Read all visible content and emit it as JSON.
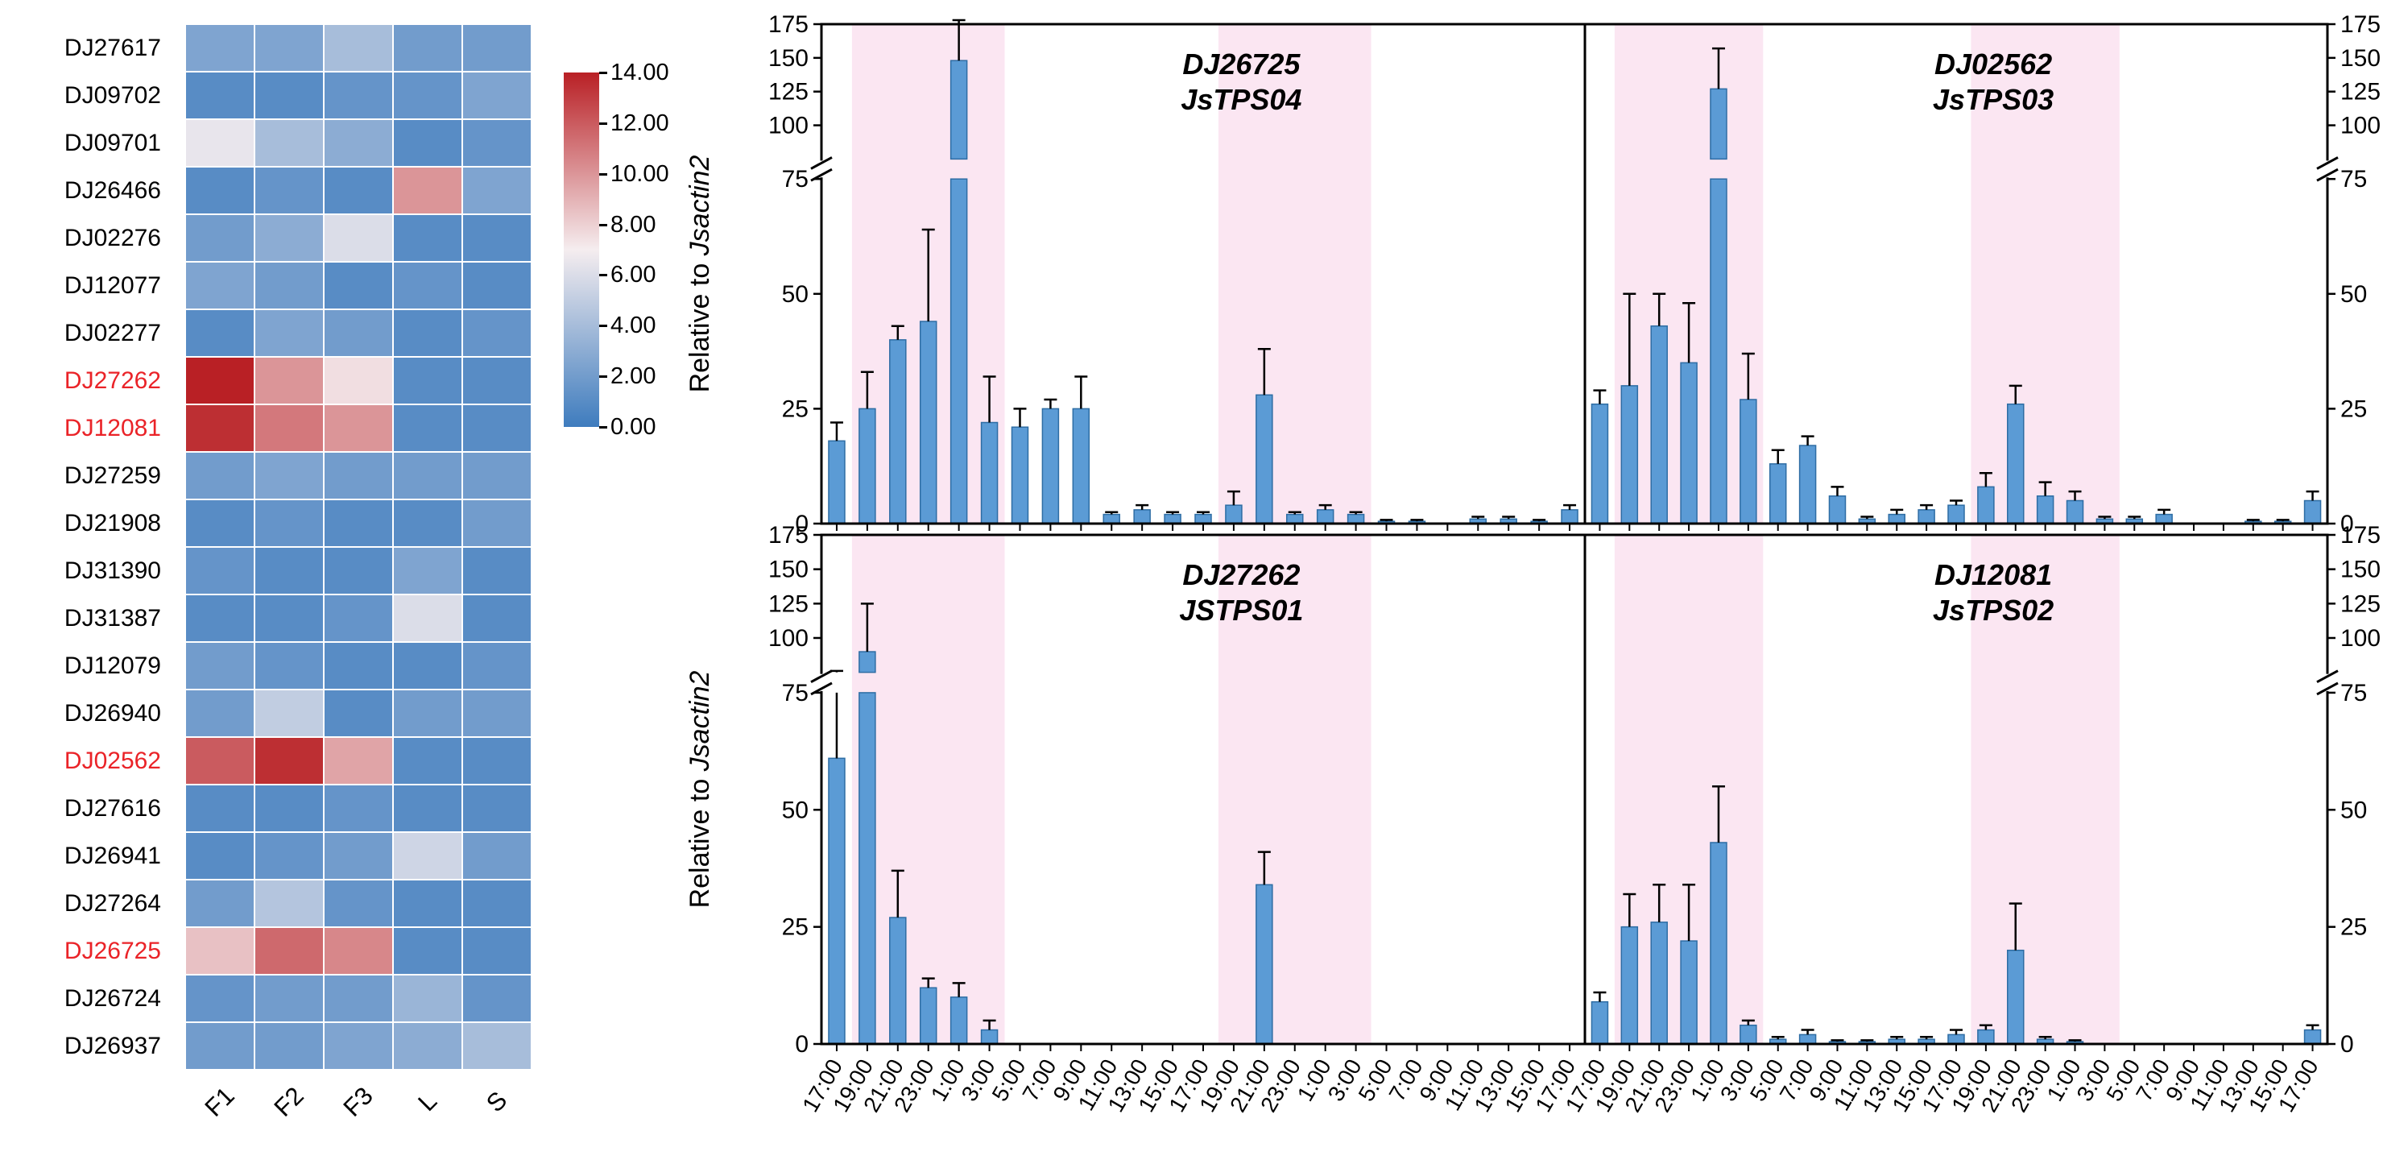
{
  "styles": {
    "bar_fill": "#5b9bd5",
    "bar_edge": "#2e6da4",
    "night_band": "#fbe6f2",
    "heatmap_low": "#3e7cbe",
    "heatmap_mid": "#f5edef",
    "heatmap_high": "#b92025",
    "highlight_label": "#ea2328",
    "axis_color": "#000000"
  },
  "axis_labels": {
    "y_regular": "Relative to ",
    "y_italic": "Jsactin2"
  },
  "chart_data": [
    {
      "type": "heatmap",
      "columns": [
        "F1",
        "F2",
        "F3",
        "L",
        "S"
      ],
      "row_ids": [
        "DJ27617",
        "DJ09702",
        "DJ09701",
        "DJ26466",
        "DJ02276",
        "DJ12077",
        "DJ02277",
        "DJ27262",
        "DJ12081",
        "DJ27259",
        "DJ21908",
        "DJ31390",
        "DJ31387",
        "DJ12079",
        "DJ26940",
        "DJ02562",
        "DJ27616",
        "DJ26941",
        "DJ27264",
        "DJ26725",
        "DJ26724",
        "DJ26937"
      ],
      "highlighted_rows": [
        "DJ27262",
        "DJ12081",
        "DJ02562",
        "DJ26725"
      ],
      "values": [
        [
          2.5,
          2.5,
          4.0,
          2.0,
          2.0
        ],
        [
          1.0,
          1.0,
          1.5,
          1.5,
          2.5
        ],
        [
          6.5,
          4.0,
          3.0,
          1.0,
          1.5
        ],
        [
          1.0,
          1.5,
          1.0,
          10.0,
          2.5
        ],
        [
          2.0,
          3.0,
          6.0,
          1.0,
          1.0
        ],
        [
          2.5,
          2.0,
          1.0,
          1.5,
          1.0
        ],
        [
          1.0,
          2.5,
          2.0,
          1.0,
          1.5
        ],
        [
          14.0,
          10.0,
          7.5,
          1.0,
          1.0
        ],
        [
          13.5,
          11.0,
          10.0,
          1.0,
          1.0
        ],
        [
          2.0,
          2.5,
          2.0,
          2.0,
          2.0
        ],
        [
          1.0,
          1.5,
          1.0,
          1.0,
          2.0
        ],
        [
          1.5,
          1.0,
          1.0,
          2.5,
          1.0
        ],
        [
          1.0,
          1.0,
          1.5,
          6.0,
          1.0
        ],
        [
          2.0,
          1.5,
          1.0,
          1.0,
          1.5
        ],
        [
          2.0,
          5.0,
          1.0,
          2.0,
          2.0
        ],
        [
          12.0,
          13.5,
          9.5,
          1.0,
          1.0
        ],
        [
          1.0,
          1.0,
          1.5,
          1.0,
          1.0
        ],
        [
          1.0,
          1.5,
          2.0,
          5.5,
          2.0
        ],
        [
          2.0,
          4.5,
          1.5,
          1.0,
          1.0
        ],
        [
          8.5,
          11.5,
          10.5,
          1.0,
          1.0
        ],
        [
          1.5,
          2.0,
          2.0,
          3.5,
          1.5
        ],
        [
          2.0,
          2.0,
          2.5,
          3.0,
          4.0
        ]
      ],
      "colorbar": {
        "min": 0.0,
        "max": 14.0,
        "tick_labels": [
          "14.00",
          "12.00",
          "10.00",
          "8.00",
          "6.00",
          "4.00",
          "2.00",
          "0.00"
        ]
      }
    },
    {
      "type": "bar",
      "title": "DJ26725 JsTPS04",
      "gene": "DJ26725",
      "tps": "JsTPS04",
      "ylabel": "Relative to Jsactin2",
      "axis_break": 75,
      "ylim_lower": [
        0,
        75
      ],
      "ylim_upper": [
        75,
        175
      ],
      "y_ticks": [
        0,
        25,
        50,
        75,
        100,
        125,
        150,
        175
      ],
      "night_bands_slots": [
        [
          1,
          6
        ],
        [
          13,
          18
        ]
      ],
      "x": [
        "17:00",
        "19:00",
        "21:00",
        "23:00",
        "1:00",
        "3:00",
        "5:00",
        "7:00",
        "9:00",
        "11:00",
        "13:00",
        "15:00",
        "17:00",
        "19:00",
        "21:00",
        "23:00",
        "1:00",
        "3:00",
        "5:00",
        "7:00",
        "9:00",
        "11:00",
        "13:00",
        "15:00",
        "17:00"
      ],
      "values": [
        18,
        25,
        40,
        44,
        148,
        22,
        21,
        25,
        25,
        2,
        3,
        2,
        2,
        4,
        28,
        2,
        3,
        2,
        0.5,
        0.5,
        0,
        1,
        1,
        0.5,
        3
      ],
      "errors": [
        4,
        8,
        3,
        20,
        30,
        10,
        4,
        2,
        7,
        0.5,
        1,
        0.5,
        0.5,
        3,
        10,
        0.5,
        1,
        0.5,
        0.3,
        0.3,
        0,
        0.5,
        0.5,
        0.3,
        1
      ]
    },
    {
      "type": "bar",
      "title": "DJ02562 JsTPS03",
      "gene": "DJ02562",
      "tps": "JsTPS03",
      "ylabel": "Relative to Jsactin2",
      "axis_break": 75,
      "ylim_lower": [
        0,
        75
      ],
      "ylim_upper": [
        75,
        175
      ],
      "y_ticks": [
        0,
        25,
        50,
        75,
        100,
        125,
        150,
        175
      ],
      "night_bands_slots": [
        [
          1,
          6
        ],
        [
          13,
          18
        ]
      ],
      "x": [
        "17:00",
        "19:00",
        "21:00",
        "23:00",
        "1:00",
        "3:00",
        "5:00",
        "7:00",
        "9:00",
        "11:00",
        "13:00",
        "15:00",
        "17:00",
        "19:00",
        "21:00",
        "23:00",
        "1:00",
        "3:00",
        "5:00",
        "7:00",
        "9:00",
        "11:00",
        "13:00",
        "15:00",
        "17:00"
      ],
      "values": [
        26,
        30,
        43,
        35,
        127,
        27,
        13,
        17,
        6,
        1,
        2,
        3,
        4,
        8,
        26,
        6,
        5,
        1,
        1,
        2,
        0,
        0,
        0.5,
        0.5,
        5
      ],
      "errors": [
        3,
        20,
        7,
        13,
        30,
        10,
        3,
        2,
        2,
        0.5,
        1,
        1,
        1,
        3,
        4,
        3,
        2,
        0.5,
        0.5,
        1,
        0,
        0,
        0.3,
        0.3,
        2
      ]
    },
    {
      "type": "bar",
      "title": "DJ27262 JSTPS01",
      "gene": "DJ27262",
      "tps": "JSTPS01",
      "ylabel": "Relative to Jsactin2",
      "axis_break": 75,
      "ylim_lower": [
        0,
        75
      ],
      "ylim_upper": [
        75,
        175
      ],
      "y_ticks": [
        0,
        25,
        50,
        75,
        100,
        125,
        150,
        175
      ],
      "night_bands_slots": [
        [
          1,
          6
        ],
        [
          13,
          18
        ]
      ],
      "x": [
        "17:00",
        "19:00",
        "21:00",
        "23:00",
        "1:00",
        "3:00",
        "5:00",
        "7:00",
        "9:00",
        "11:00",
        "13:00",
        "15:00",
        "17:00",
        "19:00",
        "21:00",
        "23:00",
        "1:00",
        "3:00",
        "5:00",
        "7:00",
        "9:00",
        "11:00",
        "13:00",
        "15:00",
        "17:00"
      ],
      "values": [
        61,
        90,
        27,
        12,
        10,
        3,
        0,
        0,
        0,
        0,
        0,
        0,
        0,
        0,
        34,
        0,
        0,
        0,
        0,
        0,
        0,
        0,
        0,
        0,
        0
      ],
      "errors": [
        15,
        35,
        10,
        2,
        3,
        2,
        0,
        0,
        0,
        0,
        0,
        0,
        0,
        0,
        7,
        0,
        0,
        0,
        0,
        0,
        0,
        0,
        0,
        0,
        0
      ]
    },
    {
      "type": "bar",
      "title": "DJ12081 JsTPS02",
      "gene": "DJ12081",
      "tps": "JsTPS02",
      "ylabel": "Relative to Jsactin2",
      "axis_break": 75,
      "ylim_lower": [
        0,
        75
      ],
      "ylim_upper": [
        75,
        175
      ],
      "y_ticks": [
        0,
        25,
        50,
        75,
        100,
        125,
        150,
        175
      ],
      "night_bands_slots": [
        [
          1,
          6
        ],
        [
          13,
          18
        ]
      ],
      "x": [
        "17:00",
        "19:00",
        "21:00",
        "23:00",
        "1:00",
        "3:00",
        "5:00",
        "7:00",
        "9:00",
        "11:00",
        "13:00",
        "15:00",
        "17:00",
        "19:00",
        "21:00",
        "23:00",
        "1:00",
        "3:00",
        "5:00",
        "7:00",
        "9:00",
        "11:00",
        "13:00",
        "15:00",
        "17:00"
      ],
      "values": [
        9,
        25,
        26,
        22,
        43,
        4,
        1,
        2,
        0.5,
        0.5,
        1,
        1,
        2,
        3,
        20,
        1,
        0.5,
        0,
        0,
        0,
        0,
        0,
        0,
        0,
        3
      ],
      "errors": [
        2,
        7,
        8,
        12,
        12,
        1,
        0.5,
        1,
        0.3,
        0.3,
        0.5,
        0.5,
        1,
        1,
        10,
        0.5,
        0.3,
        0,
        0,
        0,
        0,
        0,
        0,
        0,
        1
      ]
    }
  ]
}
